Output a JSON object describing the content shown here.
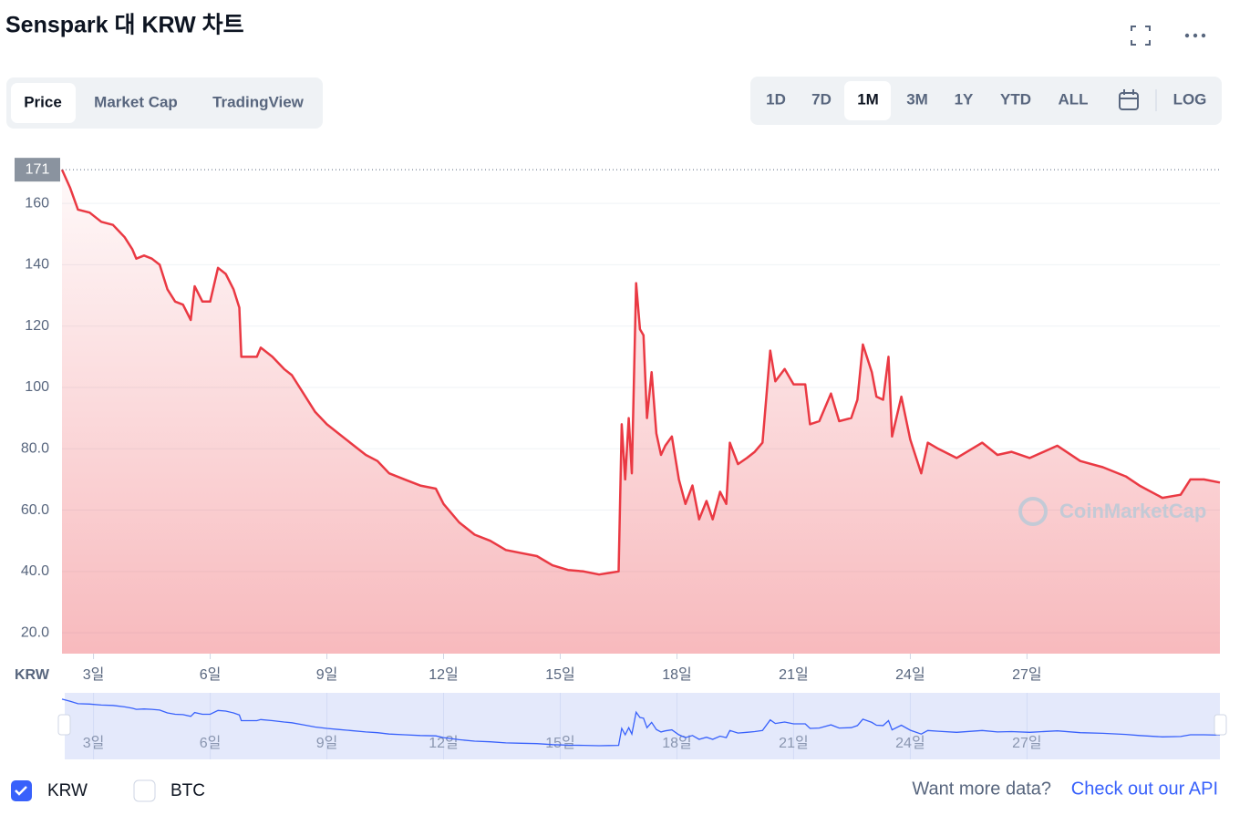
{
  "chart_data": {
    "type": "line",
    "title": "Senspark 대 KRW 차트",
    "color": "#ea3943",
    "ylabel": "KRW",
    "max_label": 171,
    "watermark": "CoinMarketCap",
    "x": [
      2.19,
      2.4,
      2.6,
      2.9,
      3.2,
      3.5,
      3.8,
      4.0,
      4.1,
      4.3,
      4.5,
      4.7,
      4.9,
      5.1,
      5.3,
      5.5,
      5.6,
      5.8,
      6.0,
      6.2,
      6.4,
      6.6,
      6.75,
      6.8,
      7.2,
      7.3,
      7.6,
      7.9,
      8.1,
      8.4,
      8.7,
      9.0,
      9.3,
      9.6,
      10.0,
      10.3,
      10.6,
      11.0,
      11.4,
      11.8,
      12.0,
      12.4,
      12.8,
      13.2,
      13.6,
      14.0,
      14.4,
      14.8,
      15.2,
      15.6,
      16.0,
      16.25,
      16.5,
      16.58,
      16.67,
      16.76,
      16.84,
      16.95,
      17.05,
      17.14,
      17.23,
      17.35,
      17.47,
      17.59,
      17.7,
      17.87,
      18.05,
      18.22,
      18.4,
      18.57,
      18.76,
      18.92,
      19.11,
      19.27,
      19.36,
      19.57,
      19.8,
      20.0,
      20.2,
      20.4,
      20.53,
      20.77,
      21.0,
      21.3,
      21.42,
      21.66,
      21.96,
      22.17,
      22.48,
      22.64,
      22.78,
      23.01,
      23.13,
      23.3,
      23.44,
      23.53,
      23.77,
      24.0,
      24.28,
      24.45,
      24.72,
      25.19,
      25.85,
      26.24,
      26.6,
      27.07,
      27.78,
      28.37,
      28.95,
      29.54,
      29.89,
      30.48,
      30.95,
      31.2,
      31.55,
      31.96
    ],
    "values": [
      171,
      165,
      158,
      157,
      154,
      153,
      149,
      145,
      142,
      143,
      142,
      140,
      132,
      128,
      127,
      122,
      133,
      128,
      128,
      139,
      137,
      132,
      126,
      110,
      110,
      113,
      110,
      106,
      104,
      98,
      92,
      88,
      85,
      82,
      78,
      76,
      72,
      70,
      68,
      67,
      62,
      56,
      52,
      50,
      47,
      46,
      45,
      42,
      40.5,
      40,
      39,
      39.5,
      40,
      88,
      70,
      90,
      72,
      134,
      119,
      117,
      90,
      105,
      85,
      78,
      81,
      84,
      70,
      62,
      68,
      57,
      63,
      57,
      66,
      62,
      82,
      75,
      77,
      79,
      82,
      112,
      102,
      106,
      101,
      101,
      88,
      89,
      98,
      89,
      90,
      96,
      114,
      105,
      97,
      96,
      110,
      84,
      97,
      83,
      72,
      82,
      80,
      77,
      82,
      78,
      79,
      77,
      81,
      76,
      74,
      71,
      68,
      64,
      65,
      70,
      70,
      69
    ],
    "xlim": [
      2.19,
      31.96
    ],
    "xticks": [
      {
        "value": 3,
        "label": "3일"
      },
      {
        "value": 6,
        "label": "6일"
      },
      {
        "value": 9,
        "label": "9일"
      },
      {
        "value": 12,
        "label": "12일"
      },
      {
        "value": 15,
        "label": "15일"
      },
      {
        "value": 18,
        "label": "18일"
      },
      {
        "value": 21,
        "label": "21일"
      },
      {
        "value": 24,
        "label": "24일"
      },
      {
        "value": 27,
        "label": "27일"
      }
    ],
    "ylim": [
      13.2,
      175.8
    ],
    "yticks": [
      {
        "value": 20,
        "label": "20.0"
      },
      {
        "value": 40,
        "label": "40.0"
      },
      {
        "value": 60,
        "label": "60.0"
      },
      {
        "value": 80,
        "label": "80.0"
      },
      {
        "value": 100,
        "label": "100"
      },
      120,
      140,
      160
    ],
    "grid": true
  },
  "tabs": [
    "Price",
    "Market Cap",
    "TradingView"
  ],
  "ranges": [
    "1D",
    "7D",
    "1M",
    "3M",
    "1Y",
    "YTD",
    "ALL"
  ],
  "log_button": "LOG",
  "toggles": [
    "KRW",
    "BTC"
  ],
  "footer": {
    "question": "Want more data?",
    "link": "Check out our API"
  }
}
